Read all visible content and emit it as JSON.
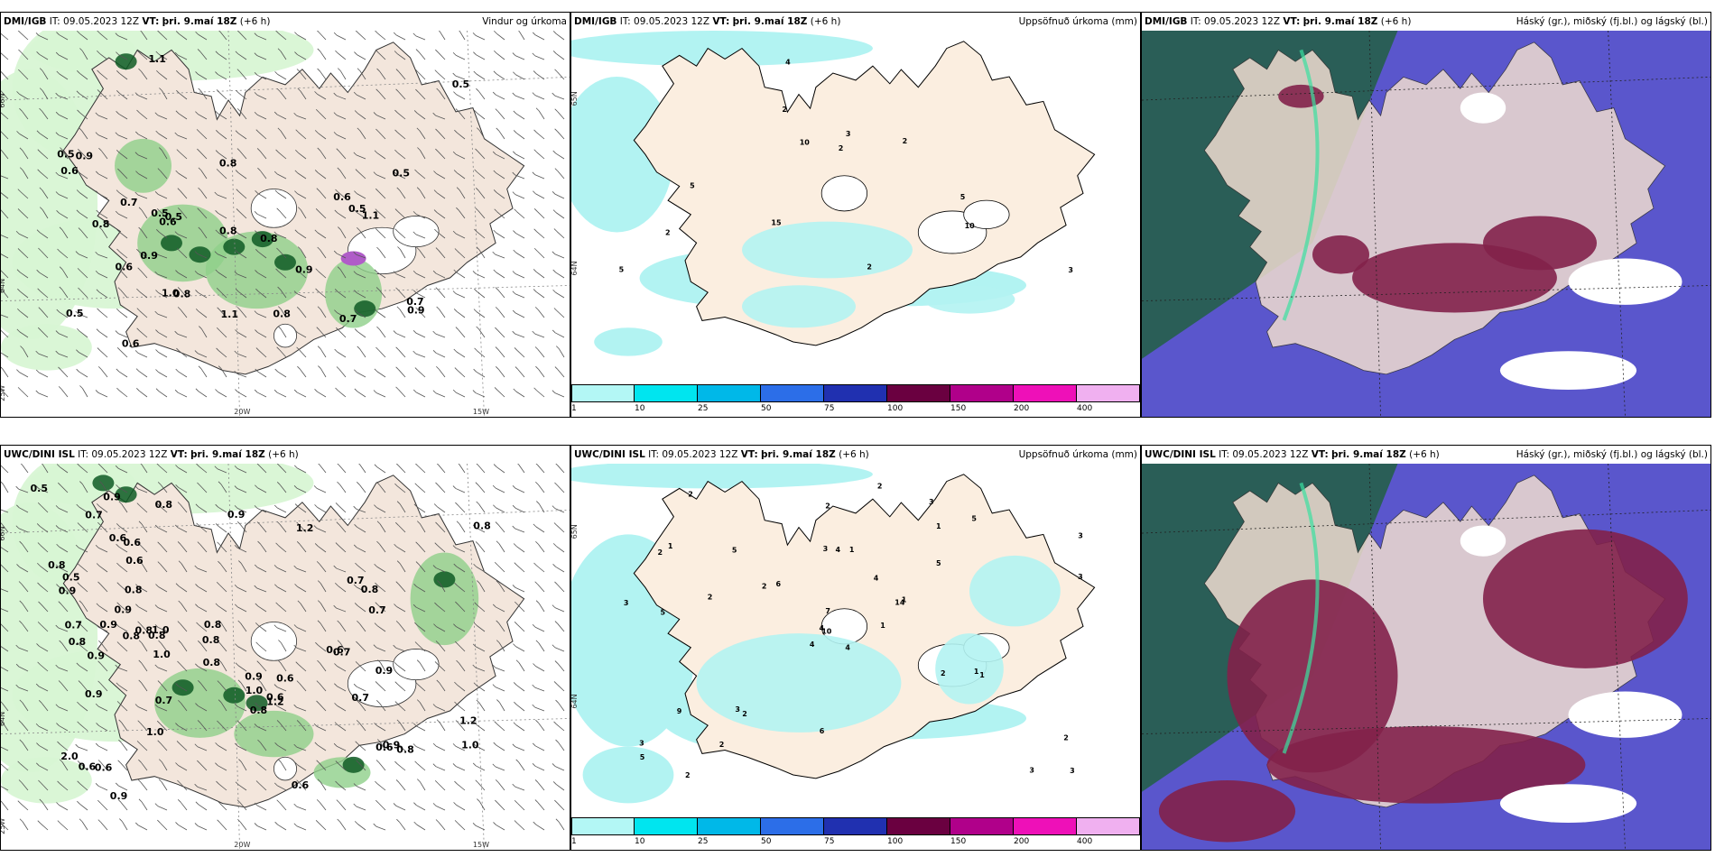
{
  "colors": {
    "land": "#f3e6dc",
    "rain_light": "#d8f5d4",
    "rain_mid": "#8fd08a",
    "rain_dark": "#0f5a25",
    "precip_cyan": "#b2f3f2",
    "cloud_high": "#2a5e57",
    "cloud_mid": "#5a56cc",
    "cloud_low": "#82214a"
  },
  "panels": [
    {
      "model": "DMI/IGB",
      "it_label": "IT:",
      "it": "09.05.2023 12Z",
      "vt_label": "VT:",
      "vt": "þri. 9.maí 18Z",
      "lead": "(+6 h)",
      "product": "Vindur og úrkoma",
      "values": [
        "0.6",
        "0.8",
        "1.0",
        "0.5",
        "0.5",
        "0.7",
        "0.5",
        "0.8",
        "0.8",
        "0.5",
        "0.8",
        "0.9",
        "0.8",
        "0.9",
        "0.5",
        "1.1",
        "0.6",
        "0.5",
        "0.9",
        "1.1",
        "0.7",
        "0.6",
        "1.1",
        "0.9",
        "0.7",
        "0.6",
        "0.5",
        "0.6",
        "0.8"
      ],
      "lon_labels": [
        "20W",
        "15W"
      ],
      "lat_labels": [
        "66N",
        "64N",
        "25W"
      ]
    },
    {
      "model": "DMI/IGB",
      "it_label": "IT:",
      "it": "09.05.2023 12Z",
      "vt_label": "VT:",
      "vt": "þri. 9.maí 18Z",
      "lead": "(+6 h)",
      "product": "Uppsöfnuð úrkoma (mm)",
      "values": [
        "4",
        "10",
        "2",
        "3",
        "5",
        "2",
        "3",
        "10",
        "15",
        "5",
        "5",
        "2",
        "2",
        "2"
      ],
      "lat_labels": [
        "65N",
        "64N"
      ],
      "colorbar_ticks": [
        "1",
        "10",
        "25",
        "50",
        "75",
        "100",
        "150",
        "200",
        "400"
      ],
      "colorbar_colors": [
        "#b3f7f5",
        "#00e5ef",
        "#00b8e8",
        "#2c6ee8",
        "#2030b0",
        "#6a0040",
        "#b0008a",
        "#ee10b8",
        "#f0b0f0"
      ]
    },
    {
      "model": "DMI/IGB",
      "it_label": "IT:",
      "it": "09.05.2023 12Z",
      "vt_label": "VT:",
      "vt": "þri. 9.maí 18Z",
      "lead": "(+6 h)",
      "product": "Háský (gr.), miðský (fj.bl.) og lágský (bl.)"
    },
    {
      "model": "UWC/DINI ISL",
      "it_label": "IT:",
      "it": "09.05.2023 12Z",
      "vt_label": "VT:",
      "vt": "þri. 9.maí 18Z",
      "lead": "(+6 h)",
      "product": "",
      "values": [
        "0.7",
        "0.8",
        "0.8",
        "0.8",
        "0.8",
        "0.9",
        "0.6",
        "0.7",
        "0.9",
        "1.0",
        "0.9",
        "0.8",
        "0.9",
        "0.8",
        "0.8",
        "0.6",
        "0.9",
        "1.0",
        "0.9",
        "0.6",
        "0.8",
        "0.9",
        "0.7",
        "1.2",
        "0.8",
        "0.9",
        "0.8",
        "1.0",
        "1.2",
        "0.7",
        "0.6",
        "0.8",
        "0.6",
        "0.5",
        "0.7",
        "0.6",
        "0.5",
        "1.0",
        "1.0",
        "0.8",
        "0.6",
        "0.7",
        "0.8",
        "0.7",
        "0.9",
        "0.9",
        "0.8",
        "0.6",
        "0.9",
        "0.6",
        "1.2",
        "2.0",
        "0.6"
      ],
      "lon_labels": [
        "20W",
        "15W"
      ],
      "lat_labels": [
        "66N",
        "64N",
        "25W"
      ]
    },
    {
      "model": "UWC/DINI ISL",
      "it_label": "IT:",
      "it": "09.05.2023 12Z",
      "vt_label": "VT:",
      "vt": "þri. 9.maí 18Z",
      "lead": "(+6 h)",
      "product": "Uppsöfnuð úrkoma (mm)",
      "values": [
        "4",
        "2",
        "10",
        "3",
        "14",
        "2",
        "3",
        "1",
        "1",
        "1",
        "2",
        "3",
        "5",
        "3",
        "4",
        "5",
        "2",
        "3",
        "4",
        "9",
        "6",
        "5",
        "2",
        "4",
        "1",
        "1",
        "1",
        "2",
        "3",
        "2",
        "3",
        "4",
        "6",
        "7",
        "5",
        "5",
        "3",
        "3",
        "2",
        "1",
        "2",
        "2",
        "2"
      ],
      "lat_labels": [
        "65N",
        "64N"
      ],
      "colorbar_ticks": [
        "1",
        "10",
        "25",
        "50",
        "75",
        "100",
        "150",
        "200",
        "400"
      ],
      "colorbar_colors": [
        "#b3f7f5",
        "#00e5ef",
        "#00b8e8",
        "#2c6ee8",
        "#2030b0",
        "#6a0040",
        "#b0008a",
        "#ee10b8",
        "#f0b0f0"
      ]
    },
    {
      "model": "UWC/DINI ISL",
      "it_label": "IT:",
      "it": "09.05.2023 12Z",
      "vt_label": "VT:",
      "vt": "þri. 9.maí 18Z",
      "lead": "(+6 h)",
      "product": "Háský (gr.), miðský (fj.bl.) og lágský (bl.)"
    }
  ]
}
